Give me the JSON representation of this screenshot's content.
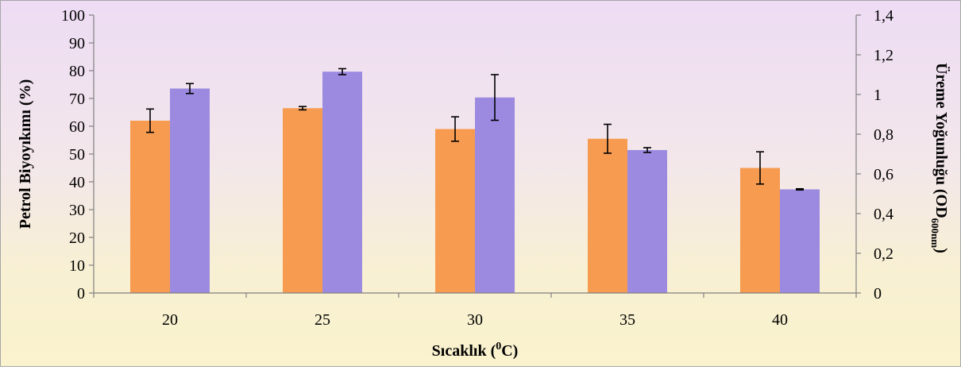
{
  "chart_data": {
    "type": "bar",
    "categories": [
      "20",
      "25",
      "30",
      "35",
      "40"
    ],
    "xlabel": "Sıcaklık (0C)",
    "xlabel_parts": {
      "main": "Sıcaklık (",
      "sup": "0",
      "tail": "C)"
    },
    "ylabel_left": "Petrol  Biyoyıkımı (%)",
    "ylabel_right": "Üreme  Yoğunluğu (OD600nm)",
    "ylabel_right_parts": {
      "main": "Üreme  Yoğunluğu (OD",
      "sub": "600nm",
      "tail": ")"
    },
    "ylim_left": [
      0,
      100
    ],
    "ylim_right": [
      0,
      1.4
    ],
    "yticks_left": [
      "0",
      "10",
      "20",
      "30",
      "40",
      "50",
      "60",
      "70",
      "80",
      "90",
      "100"
    ],
    "yticks_right": [
      "0",
      "0,2",
      "0,4",
      "0,6",
      "0,8",
      "1",
      "1,2",
      "1,4"
    ],
    "grid": false,
    "legend": "none",
    "series": [
      {
        "axis": "left",
        "color": "#f79b51",
        "values": [
          62,
          66.5,
          59,
          55.5,
          45
        ],
        "errors": [
          4.2,
          0.6,
          4.4,
          5.2,
          5.8
        ]
      },
      {
        "axis": "right",
        "color": "#9b8ae0",
        "values": [
          1.03,
          1.115,
          0.985,
          0.72,
          0.522
        ],
        "errors": [
          0.025,
          0.015,
          0.115,
          0.012,
          0.003
        ]
      }
    ]
  }
}
